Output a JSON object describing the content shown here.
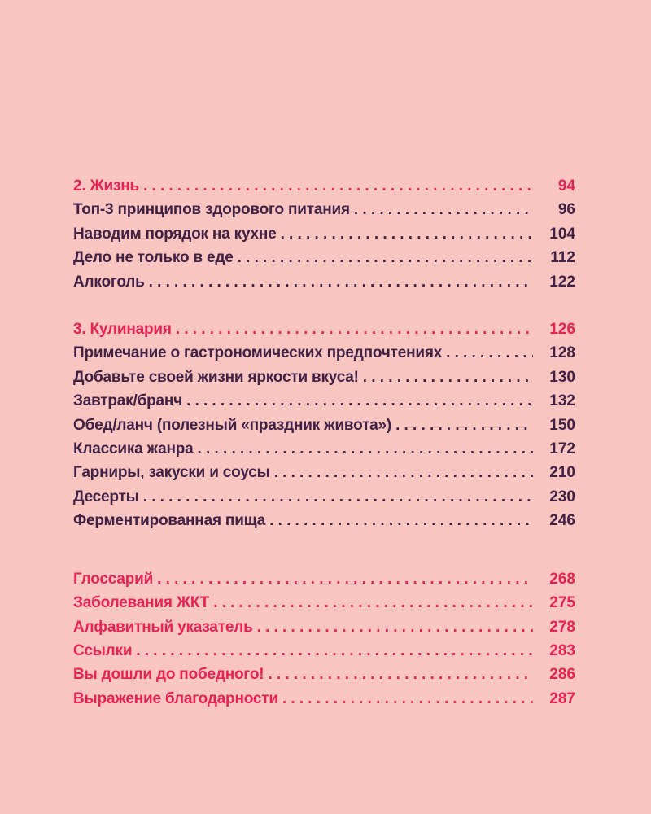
{
  "theme": {
    "background": "#f9c5c1",
    "text_color": "#3e2144",
    "accent_color": "#e8234e"
  },
  "toc": {
    "sections": [
      {
        "items": [
          {
            "label": "2. Жизнь",
            "page": "94",
            "accent": true
          },
          {
            "label": "Топ-3 принципов здорового питания",
            "page": "96",
            "accent": false
          },
          {
            "label": "Наводим порядок на кухне",
            "page": "104",
            "accent": false
          },
          {
            "label": "Дело не только в еде",
            "page": "112",
            "accent": false
          },
          {
            "label": "Алкоголь",
            "page": "122",
            "accent": false
          }
        ]
      },
      {
        "items": [
          {
            "label": "3. Кулинария",
            "page": "126",
            "accent": true
          },
          {
            "label": "Примечание о гастрономических предпочтениях",
            "page": "128",
            "accent": false
          },
          {
            "label": "Добавьте своей жизни яркости вкуса!",
            "page": "130",
            "accent": false
          },
          {
            "label": "Завтрак/бранч",
            "page": "132",
            "accent": false
          },
          {
            "label": "Обед/ланч (полезный «праздник живота»)",
            "page": "150",
            "accent": false
          },
          {
            "label": "Классика жанра",
            "page": "172",
            "accent": false
          },
          {
            "label": "Гарниры, закуски и соусы",
            "page": "210",
            "accent": false
          },
          {
            "label": "Десерты",
            "page": "230",
            "accent": false
          },
          {
            "label": "Ферментированная пища",
            "page": "246",
            "accent": false
          }
        ]
      },
      {
        "items": [
          {
            "label": "Глоссарий",
            "page": "268",
            "accent": true
          },
          {
            "label": "Заболевания ЖКТ",
            "page": "275",
            "accent": true
          },
          {
            "label": "Алфавитный указатель",
            "page": "278",
            "accent": true
          },
          {
            "label": "Ссылки",
            "page": "283",
            "accent": true
          },
          {
            "label": "Вы дошли до победного!",
            "page": "286",
            "accent": true
          },
          {
            "label": "Выражение благодарности",
            "page": "287",
            "accent": true
          }
        ]
      }
    ]
  }
}
